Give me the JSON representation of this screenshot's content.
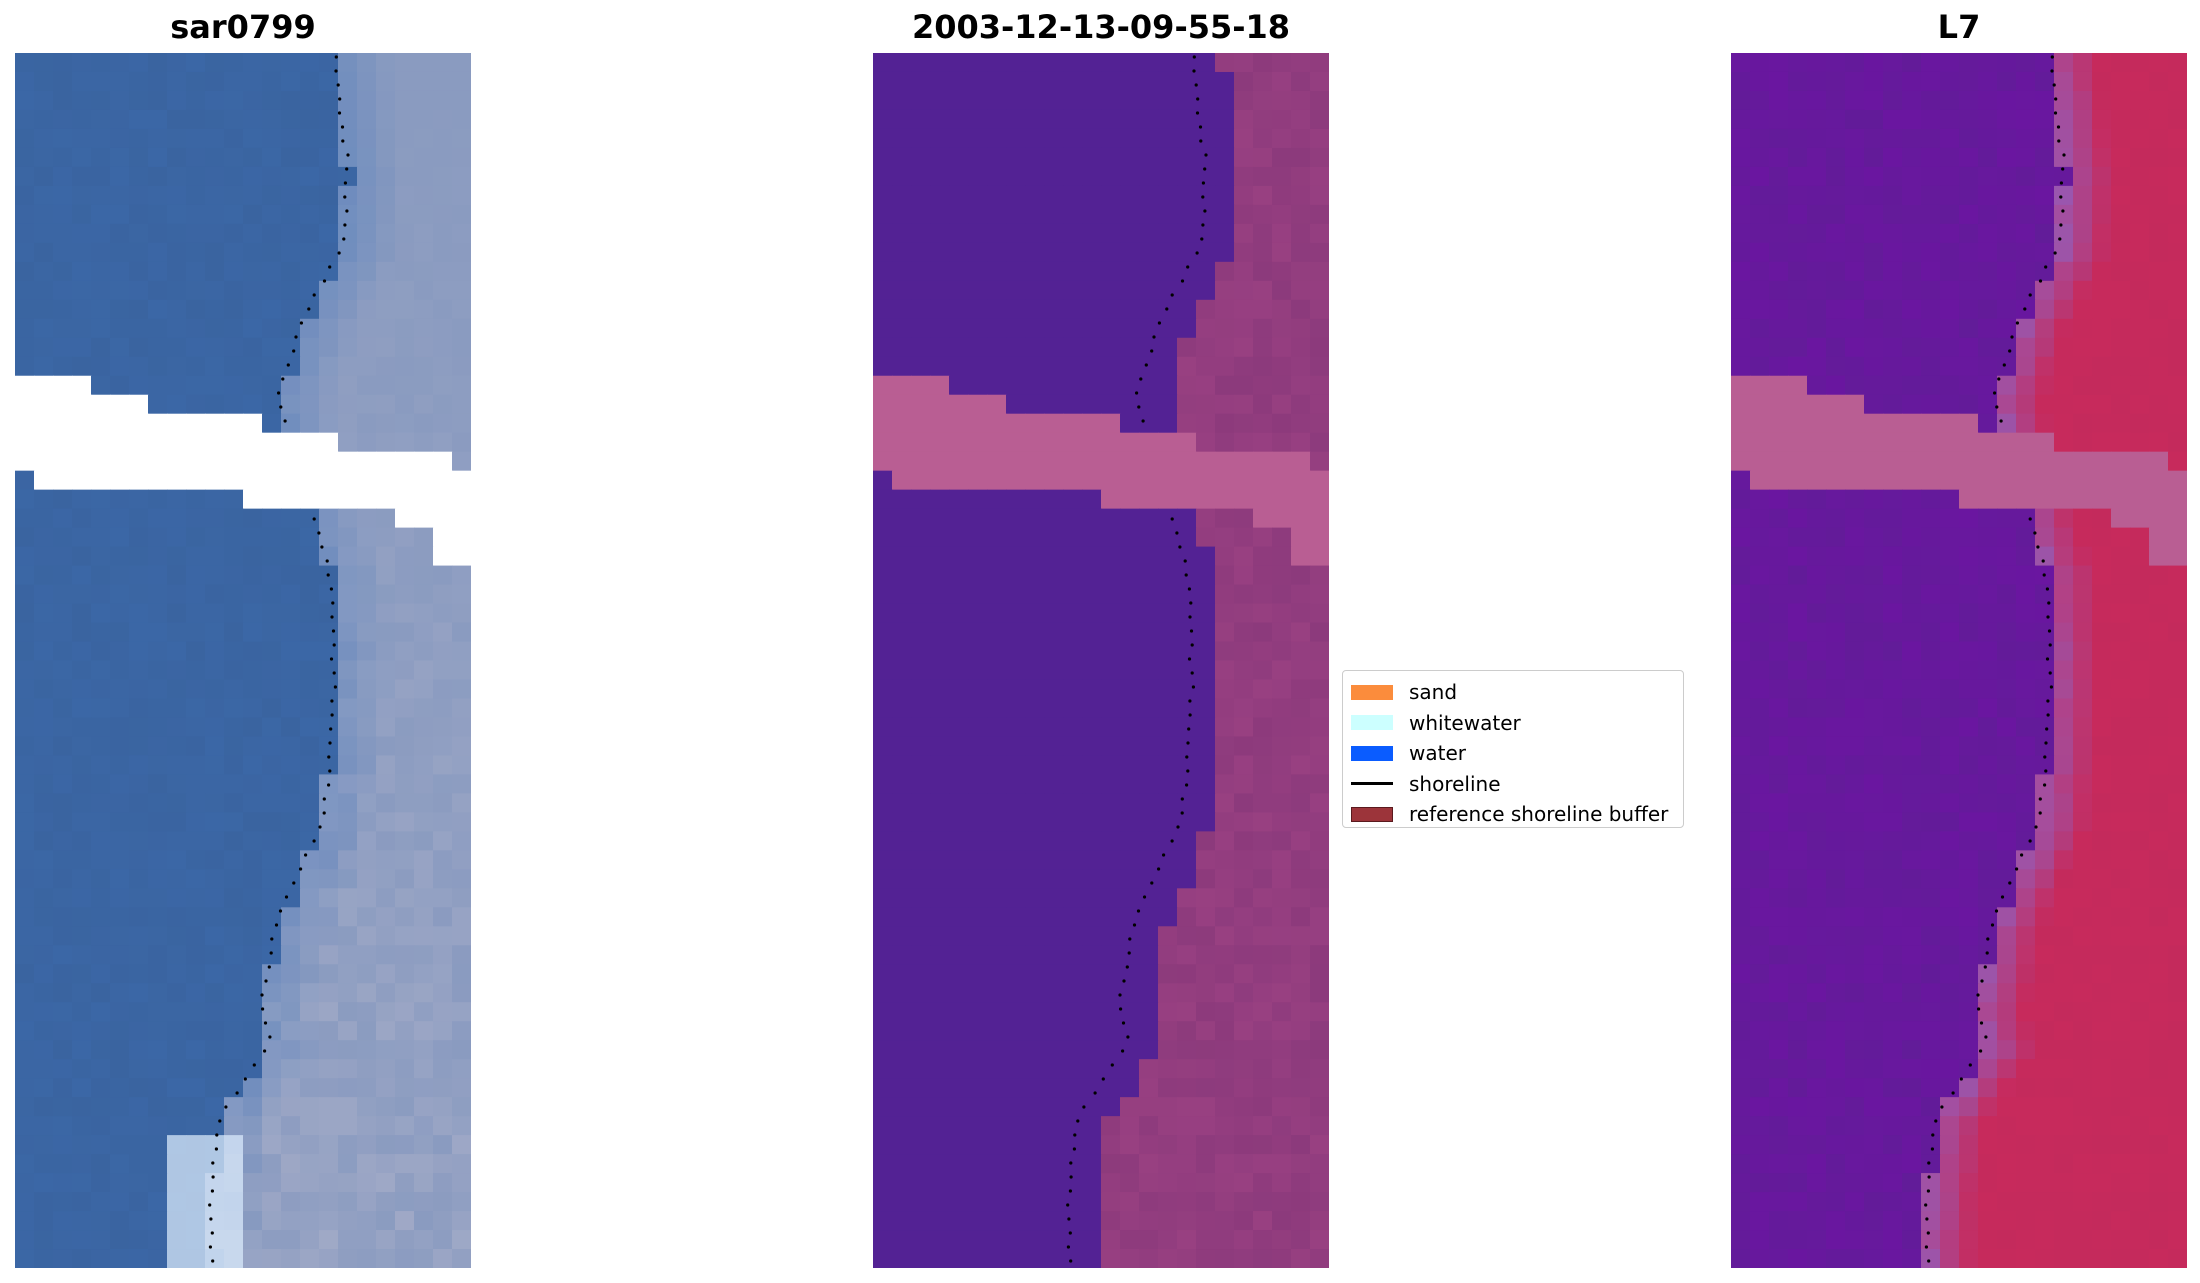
{
  "panels": [
    {
      "title": "sar0799"
    },
    {
      "title": "2003-12-13-09-55-18"
    },
    {
      "title": "L7"
    }
  ],
  "legend": {
    "items": [
      {
        "label": "sand",
        "color": "#fb8c3c",
        "kind": "patch"
      },
      {
        "label": "whitewater",
        "color": "#ccffff",
        "kind": "patch"
      },
      {
        "label": "water",
        "color": "#0a5cff",
        "kind": "patch"
      },
      {
        "label": "shoreline",
        "color": "#000000",
        "kind": "line"
      },
      {
        "label": "reference shoreline buffer",
        "color": "#9c343a",
        "kind": "patch"
      }
    ]
  },
  "colors": {
    "rgb_water": "#3a64a0",
    "rgb_land": "#8a9bc0",
    "class_water": "#532294",
    "class_land": "#8c3a7c",
    "nodata": "#b95e93",
    "index_low": "#6a16a0",
    "index_high": "#c42a5c"
  }
}
